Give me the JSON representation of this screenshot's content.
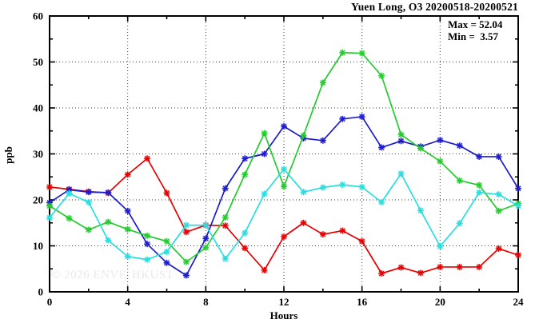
{
  "chart_data": {
    "type": "line",
    "title": "Yuen Long, O3 20200518-20200521",
    "xlabel": "Hours",
    "ylabel": "ppb",
    "watermark": "© 2026 ENVF, HKUST",
    "annotations": {
      "max_line": "Max = 52.04",
      "min_line": "Min =  3.57"
    },
    "stats": {
      "max": 52.04,
      "min": 3.57
    },
    "xlim": [
      0,
      24
    ],
    "ylim": [
      0,
      60
    ],
    "xticks_major": [
      0,
      4,
      8,
      12,
      16,
      20,
      24
    ],
    "xticks_minor": [
      2,
      6,
      10,
      14,
      18,
      22
    ],
    "yticks_major": [
      0,
      10,
      20,
      30,
      40,
      50,
      60
    ],
    "yticks_minor": [
      5,
      15,
      25,
      35,
      45,
      55
    ],
    "grid": "dotted-at-major-ticks",
    "legend": "none",
    "x": [
      0,
      1,
      2,
      3,
      4,
      5,
      6,
      7,
      8,
      9,
      10,
      11,
      12,
      13,
      14,
      15,
      16,
      17,
      18,
      19,
      20,
      21,
      22,
      23,
      24
    ],
    "series": [
      {
        "name": "red",
        "color": "#e60000",
        "values": [
          22.8,
          22.3,
          21.8,
          21.5,
          25.5,
          29.0,
          21.5,
          13.0,
          14.5,
          14.4,
          9.5,
          4.7,
          12.0,
          15.0,
          12.5,
          13.3,
          11.0,
          4.0,
          5.3,
          4.1,
          5.4,
          5.4,
          5.4,
          9.4,
          8.0
        ]
      },
      {
        "name": "blue",
        "color": "#1c1ccd",
        "values": [
          19.4,
          22.2,
          21.7,
          21.6,
          17.6,
          10.4,
          6.3,
          3.57,
          11.6,
          22.5,
          29.0,
          30.0,
          36.0,
          33.4,
          32.9,
          37.6,
          38.1,
          31.4,
          32.8,
          31.6,
          33.0,
          31.8,
          29.4,
          29.4,
          22.5
        ]
      },
      {
        "name": "green",
        "color": "#23cc2d",
        "values": [
          18.7,
          16.0,
          13.5,
          15.2,
          13.6,
          12.2,
          11.0,
          6.5,
          9.6,
          16.2,
          25.5,
          34.5,
          22.9,
          34.0,
          45.5,
          52.04,
          51.9,
          47.0,
          34.2,
          31.2,
          28.4,
          24.2,
          23.2,
          17.6,
          19.2
        ]
      },
      {
        "name": "cyan",
        "color": "#2adde0",
        "values": [
          16.1,
          21.4,
          19.5,
          11.2,
          7.7,
          7.0,
          8.7,
          14.5,
          14.5,
          7.2,
          12.8,
          21.3,
          26.7,
          21.7,
          22.7,
          23.3,
          22.8,
          19.5,
          25.7,
          17.7,
          9.9,
          14.9,
          21.6,
          21.2,
          18.7
        ]
      }
    ]
  }
}
